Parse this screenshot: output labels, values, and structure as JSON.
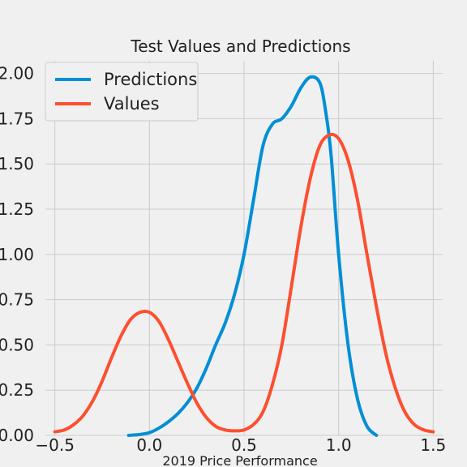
{
  "chart_data": {
    "type": "line",
    "title": "Test Values and Predictions",
    "xlabel": "2019 Price Performance",
    "ylabel": "",
    "xlim": [
      -0.55,
      1.55
    ],
    "ylim": [
      0.0,
      2.07
    ],
    "xticks": [
      "−0.5",
      "0.0",
      "0.5",
      "1.0",
      "1.5"
    ],
    "xtick_values": [
      -0.5,
      0.0,
      0.5,
      1.0,
      1.5
    ],
    "yticks": [
      "0.00",
      "0.25",
      "0.50",
      "0.75",
      "1.00",
      "1.25",
      "1.50",
      "1.75",
      "2.00"
    ],
    "ytick_values": [
      0.0,
      0.25,
      0.5,
      0.75,
      1.0,
      1.25,
      1.5,
      1.75,
      2.0
    ],
    "grid": true,
    "legend_position": "top-left",
    "series": [
      {
        "name": "Predictions",
        "color": "#008fd5",
        "x": [
          -0.11,
          -0.05,
          0.0,
          0.05,
          0.1,
          0.15,
          0.2,
          0.25,
          0.3,
          0.35,
          0.4,
          0.45,
          0.5,
          0.55,
          0.6,
          0.65,
          0.7,
          0.75,
          0.8,
          0.85,
          0.9,
          0.93,
          0.96,
          1.0,
          1.05,
          1.1,
          1.15,
          1.2
        ],
        "y": [
          0.0,
          0.005,
          0.015,
          0.04,
          0.075,
          0.12,
          0.18,
          0.26,
          0.37,
          0.5,
          0.62,
          0.78,
          1.0,
          1.3,
          1.6,
          1.72,
          1.75,
          1.82,
          1.92,
          1.98,
          1.95,
          1.8,
          1.55,
          1.0,
          0.5,
          0.2,
          0.05,
          0.0
        ]
      },
      {
        "name": "Values",
        "color": "#fc4f30",
        "x": [
          -0.5,
          -0.45,
          -0.4,
          -0.35,
          -0.3,
          -0.25,
          -0.2,
          -0.15,
          -0.1,
          -0.05,
          0.0,
          0.05,
          0.1,
          0.15,
          0.2,
          0.25,
          0.3,
          0.35,
          0.4,
          0.45,
          0.5,
          0.55,
          0.6,
          0.65,
          0.7,
          0.75,
          0.8,
          0.85,
          0.9,
          0.95,
          1.0,
          1.05,
          1.1,
          1.15,
          1.2,
          1.25,
          1.3,
          1.35,
          1.4,
          1.45,
          1.5
        ],
        "y": [
          0.02,
          0.03,
          0.06,
          0.11,
          0.19,
          0.3,
          0.43,
          0.55,
          0.64,
          0.68,
          0.68,
          0.63,
          0.53,
          0.41,
          0.29,
          0.18,
          0.1,
          0.05,
          0.03,
          0.025,
          0.03,
          0.06,
          0.13,
          0.28,
          0.5,
          0.82,
          1.15,
          1.42,
          1.6,
          1.66,
          1.64,
          1.52,
          1.3,
          1.0,
          0.71,
          0.45,
          0.26,
          0.13,
          0.06,
          0.03,
          0.02
        ]
      }
    ]
  }
}
